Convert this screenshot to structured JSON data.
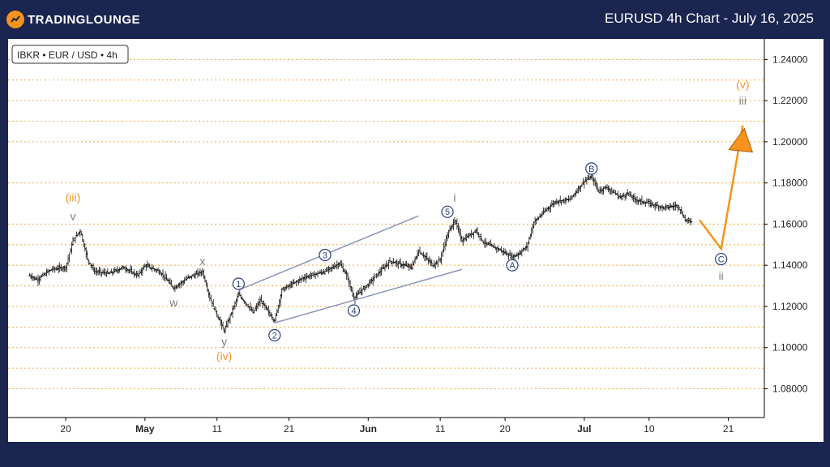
{
  "header": {
    "brand": "TRADINGLOUNGE",
    "title": "EURUSD 4h Chart - July 16, 2025"
  },
  "colors": {
    "background": "#1a2550",
    "orange": "#f7931e",
    "navy": "#2a3f7a",
    "grey": "#808080",
    "channel": "#8a95b8",
    "grid": "#f7a83c"
  },
  "chart_data": {
    "type": "candlestick",
    "instrument_label": "IBKR • EUR / USD • 4h",
    "ylim": [
      1.066,
      1.25
    ],
    "y_ticks": [
      "1.24000",
      "1.22000",
      "1.20000",
      "1.18000",
      "1.16000",
      "1.14000",
      "1.12000",
      "1.10000",
      "1.08000"
    ],
    "x_ticks": [
      "20",
      "May",
      "11",
      "21",
      "Jun",
      "11",
      "20",
      "Jul",
      "10",
      "21"
    ],
    "date_range": [
      "Apr 18 2025",
      "Jul 24 2025"
    ],
    "price_path": [
      {
        "date": "Apr 15",
        "price": 1.135
      },
      {
        "date": "Apr 16",
        "price": 1.133
      },
      {
        "date": "Apr 18",
        "price": 1.138
      },
      {
        "date": "Apr 20",
        "price": 1.139
      },
      {
        "date": "Apr 21",
        "price": 1.152
      },
      {
        "date": "Apr 22",
        "price": 1.157
      },
      {
        "date": "Apr 23",
        "price": 1.143
      },
      {
        "date": "Apr 24",
        "price": 1.137
      },
      {
        "date": "Apr 26",
        "price": 1.136
      },
      {
        "date": "Apr 28",
        "price": 1.139
      },
      {
        "date": "Apr 30",
        "price": 1.135
      },
      {
        "date": "May 1",
        "price": 1.14
      },
      {
        "date": "May 3",
        "price": 1.137
      },
      {
        "date": "May 5",
        "price": 1.129
      },
      {
        "date": "May 7",
        "price": 1.134
      },
      {
        "date": "May 9",
        "price": 1.137
      },
      {
        "date": "May 10",
        "price": 1.124
      },
      {
        "date": "May 12",
        "price": 1.108
      },
      {
        "date": "May 14",
        "price": 1.126
      },
      {
        "date": "May 16",
        "price": 1.117
      },
      {
        "date": "May 17",
        "price": 1.123
      },
      {
        "date": "May 19",
        "price": 1.113
      },
      {
        "date": "May 20",
        "price": 1.128
      },
      {
        "date": "May 23",
        "price": 1.134
      },
      {
        "date": "May 26",
        "price": 1.137
      },
      {
        "date": "May 28",
        "price": 1.141
      },
      {
        "date": "May 29",
        "price": 1.135
      },
      {
        "date": "May 30",
        "price": 1.124
      },
      {
        "date": "Jun 1",
        "price": 1.131
      },
      {
        "date": "Jun 4",
        "price": 1.142
      },
      {
        "date": "Jun 7",
        "price": 1.139
      },
      {
        "date": "Jun 8",
        "price": 1.147
      },
      {
        "date": "Jun 10",
        "price": 1.14
      },
      {
        "date": "Jun 11",
        "price": 1.143
      },
      {
        "date": "Jun 12",
        "price": 1.155
      },
      {
        "date": "Jun 13",
        "price": 1.162
      },
      {
        "date": "Jun 14",
        "price": 1.152
      },
      {
        "date": "Jun 16",
        "price": 1.157
      },
      {
        "date": "Jun 17",
        "price": 1.151
      },
      {
        "date": "Jun 19",
        "price": 1.148
      },
      {
        "date": "Jun 21",
        "price": 1.144
      },
      {
        "date": "Jun 22",
        "price": 1.146
      },
      {
        "date": "Jun 23",
        "price": 1.149
      },
      {
        "date": "Jun 24",
        "price": 1.161
      },
      {
        "date": "Jun 26",
        "price": 1.168
      },
      {
        "date": "Jun 27",
        "price": 1.171
      },
      {
        "date": "Jun 29",
        "price": 1.172
      },
      {
        "date": "Jul 1",
        "price": 1.181
      },
      {
        "date": "Jul 2",
        "price": 1.183
      },
      {
        "date": "Jul 3",
        "price": 1.176
      },
      {
        "date": "Jul 4",
        "price": 1.178
      },
      {
        "date": "Jul 6",
        "price": 1.173
      },
      {
        "date": "Jul 7",
        "price": 1.175
      },
      {
        "date": "Jul 8",
        "price": 1.172
      },
      {
        "date": "Jul 10",
        "price": 1.17
      },
      {
        "date": "Jul 12",
        "price": 1.168
      },
      {
        "date": "Jul 14",
        "price": 1.169
      },
      {
        "date": "Jul 15",
        "price": 1.162
      },
      {
        "date": "Jul 16",
        "price": 1.161
      }
    ],
    "wave_labels": [
      {
        "text": "(iii)",
        "date": "Apr 21",
        "price": 1.173,
        "color": "orange"
      },
      {
        "text": "v",
        "date": "Apr 21",
        "price": 1.164,
        "color": "grey"
      },
      {
        "text": "w",
        "date": "May 5",
        "price": 1.122,
        "color": "grey"
      },
      {
        "text": "x",
        "date": "May 9",
        "price": 1.142,
        "color": "grey"
      },
      {
        "text": "y",
        "date": "May 12",
        "price": 1.103,
        "color": "grey"
      },
      {
        "text": "(iv)",
        "date": "May 12",
        "price": 1.096,
        "color": "orange"
      },
      {
        "text": "1",
        "date": "May 14",
        "price": 1.131,
        "color": "navy",
        "circled": true
      },
      {
        "text": "2",
        "date": "May 19",
        "price": 1.106,
        "color": "navy",
        "circled": true
      },
      {
        "text": "3",
        "date": "May 26",
        "price": 1.145,
        "color": "navy",
        "circled": true
      },
      {
        "text": "4",
        "date": "May 30",
        "price": 1.118,
        "color": "navy",
        "circled": true
      },
      {
        "text": "i",
        "date": "Jun 13",
        "price": 1.173,
        "color": "grey"
      },
      {
        "text": "5",
        "date": "Jun 12",
        "price": 1.166,
        "color": "navy",
        "circled": true
      },
      {
        "text": "A",
        "date": "Jun 21",
        "price": 1.14,
        "color": "navy",
        "circled": true
      },
      {
        "text": "B",
        "date": "Jul 2",
        "price": 1.187,
        "color": "navy",
        "circled": true
      },
      {
        "text": "C",
        "date": "Jul 20",
        "price": 1.143,
        "color": "navy",
        "circled": true
      },
      {
        "text": "ii",
        "date": "Jul 20",
        "price": 1.135,
        "color": "grey"
      },
      {
        "text": "iii",
        "date": "Jul 23",
        "price": 1.22,
        "color": "grey"
      },
      {
        "text": "(v)",
        "date": "Jul 23",
        "price": 1.228,
        "color": "orange"
      }
    ],
    "channel_lines": [
      [
        {
          "date": "May 14",
          "price": 1.128
        },
        {
          "date": "Jun 8",
          "price": 1.164
        }
      ],
      [
        {
          "date": "May 19",
          "price": 1.112
        },
        {
          "date": "Jun 14",
          "price": 1.138
        }
      ]
    ],
    "projection": [
      {
        "date": "Jul 17",
        "price": 1.162
      },
      {
        "date": "Jul 20",
        "price": 1.148
      },
      {
        "date": "Jul 23",
        "price": 1.208
      }
    ]
  }
}
